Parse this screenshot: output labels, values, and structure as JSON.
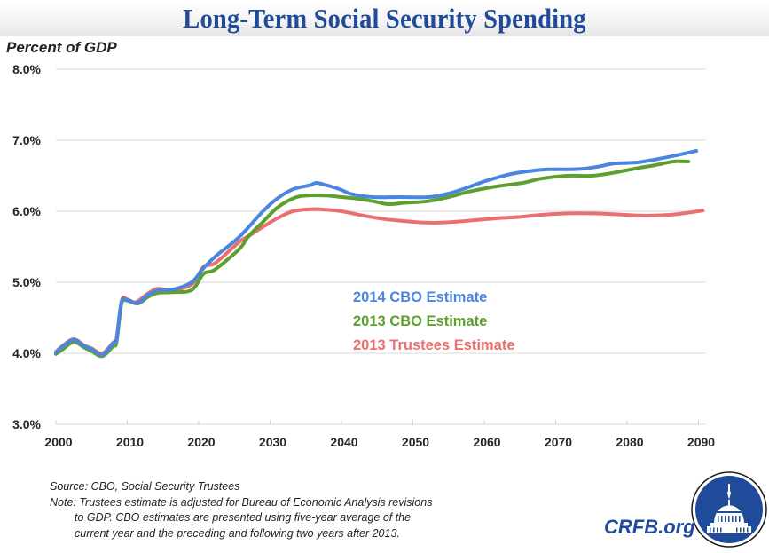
{
  "title": "Long-Term Social Security Spending",
  "colors": {
    "title": "#1f4b9a",
    "series_2014_cbo": "#4a86e0",
    "series_2013_cbo": "#5ea030",
    "series_2013_trustees": "#ec6f6f",
    "grid": "#d9d9d9",
    "brand": "#1f4b9a"
  },
  "chart_data": {
    "type": "line",
    "title": "Long-Term Social Security Spending",
    "xlabel": "",
    "ylabel": "Percent of GDP",
    "xlim": [
      2000,
      2091
    ],
    "ylim": [
      3.0,
      8.0
    ],
    "x_ticks": [
      2000,
      2010,
      2020,
      2030,
      2040,
      2050,
      2060,
      2070,
      2080,
      2090
    ],
    "x_tick_labels": [
      "2000",
      "2010",
      "2020",
      "2030",
      "2040",
      "2050",
      "2060",
      "2070",
      "2080",
      "2090"
    ],
    "y_ticks": [
      3.0,
      4.0,
      5.0,
      6.0,
      7.0,
      8.0
    ],
    "y_tick_labels": [
      "3.0%",
      "4.0%",
      "5.0%",
      "6.0%",
      "7.0%",
      "8.0%"
    ],
    "grid": true,
    "legend_position": "center",
    "series": [
      {
        "name": "2014 CBO Estimate",
        "color": "#4a86e0",
        "points": [
          [
            2000,
            4.01
          ],
          [
            2001,
            4.1
          ],
          [
            2002.5,
            4.19
          ],
          [
            2004,
            4.1
          ],
          [
            2005,
            4.06
          ],
          [
            2006.5,
            3.98
          ],
          [
            2008,
            4.14
          ],
          [
            2008.5,
            4.2
          ],
          [
            2009.2,
            4.72
          ],
          [
            2010,
            4.75
          ],
          [
            2011.5,
            4.71
          ],
          [
            2013,
            4.83
          ],
          [
            2014.5,
            4.89
          ],
          [
            2016.5,
            4.9
          ],
          [
            2019,
            5.0
          ],
          [
            2020.7,
            5.2
          ],
          [
            2022.3,
            5.36
          ],
          [
            2025.7,
            5.64
          ],
          [
            2029,
            6.0
          ],
          [
            2031,
            6.18
          ],
          [
            2033.2,
            6.31
          ],
          [
            2035.7,
            6.37
          ],
          [
            2036.5,
            6.4
          ],
          [
            2038.5,
            6.35
          ],
          [
            2040,
            6.3
          ],
          [
            2041.5,
            6.24
          ],
          [
            2044.4,
            6.2
          ],
          [
            2048,
            6.2
          ],
          [
            2052.2,
            6.2
          ],
          [
            2055,
            6.25
          ],
          [
            2057.5,
            6.33
          ],
          [
            2060,
            6.42
          ],
          [
            2062,
            6.48
          ],
          [
            2064,
            6.53
          ],
          [
            2066.7,
            6.57
          ],
          [
            2069,
            6.59
          ],
          [
            2071.7,
            6.59
          ],
          [
            2074,
            6.6
          ],
          [
            2076,
            6.63
          ],
          [
            2078,
            6.67
          ],
          [
            2080,
            6.68
          ],
          [
            2081.6,
            6.69
          ],
          [
            2084,
            6.73
          ],
          [
            2087,
            6.79
          ],
          [
            2089.7,
            6.85
          ]
        ]
      },
      {
        "name": "2013 CBO Estimate",
        "color": "#5ea030",
        "points": [
          [
            2000,
            3.99
          ],
          [
            2001,
            4.06
          ],
          [
            2002.5,
            4.16
          ],
          [
            2004,
            4.08
          ],
          [
            2005,
            4.03
          ],
          [
            2006.5,
            3.96
          ],
          [
            2008,
            4.1
          ],
          [
            2008.5,
            4.16
          ],
          [
            2009.2,
            4.7
          ],
          [
            2010,
            4.74
          ],
          [
            2011.5,
            4.7
          ],
          [
            2013,
            4.8
          ],
          [
            2014.3,
            4.85
          ],
          [
            2016.2,
            4.86
          ],
          [
            2019,
            4.89
          ],
          [
            2020.7,
            5.12
          ],
          [
            2022.3,
            5.18
          ],
          [
            2025.7,
            5.47
          ],
          [
            2027,
            5.65
          ],
          [
            2029,
            5.85
          ],
          [
            2031,
            6.05
          ],
          [
            2033.2,
            6.18
          ],
          [
            2035,
            6.22
          ],
          [
            2038,
            6.22
          ],
          [
            2040,
            6.2
          ],
          [
            2042,
            6.18
          ],
          [
            2044.5,
            6.14
          ],
          [
            2046.5,
            6.1
          ],
          [
            2049,
            6.12
          ],
          [
            2052,
            6.14
          ],
          [
            2055,
            6.2
          ],
          [
            2058,
            6.28
          ],
          [
            2061.7,
            6.35
          ],
          [
            2065.4,
            6.4
          ],
          [
            2068,
            6.46
          ],
          [
            2071.7,
            6.5
          ],
          [
            2075,
            6.5
          ],
          [
            2078,
            6.54
          ],
          [
            2081.6,
            6.61
          ],
          [
            2084,
            6.65
          ],
          [
            2086.5,
            6.7
          ],
          [
            2088.6,
            6.7
          ]
        ]
      },
      {
        "name": "2013 Trustees Estimate",
        "color": "#ec6f6f",
        "points": [
          [
            2000,
            4.02
          ],
          [
            2001,
            4.11
          ],
          [
            2002.5,
            4.2
          ],
          [
            2004,
            4.11
          ],
          [
            2005,
            4.07
          ],
          [
            2006.5,
            4.0
          ],
          [
            2008,
            4.15
          ],
          [
            2008.5,
            4.21
          ],
          [
            2009.2,
            4.74
          ],
          [
            2010,
            4.76
          ],
          [
            2011.2,
            4.72
          ],
          [
            2013,
            4.85
          ],
          [
            2014.3,
            4.91
          ],
          [
            2016.2,
            4.89
          ],
          [
            2019,
            4.97
          ],
          [
            2020.7,
            5.22
          ],
          [
            2022.3,
            5.27
          ],
          [
            2025.7,
            5.57
          ],
          [
            2027,
            5.65
          ],
          [
            2029,
            5.78
          ],
          [
            2031,
            5.9
          ],
          [
            2033.2,
            6.0
          ],
          [
            2036,
            6.03
          ],
          [
            2038,
            6.02
          ],
          [
            2040,
            6.0
          ],
          [
            2043,
            5.94
          ],
          [
            2046,
            5.89
          ],
          [
            2049,
            5.86
          ],
          [
            2051.8,
            5.84
          ],
          [
            2054,
            5.84
          ],
          [
            2057,
            5.86
          ],
          [
            2061.7,
            5.9
          ],
          [
            2065,
            5.92
          ],
          [
            2068,
            5.95
          ],
          [
            2071.7,
            5.97
          ],
          [
            2075,
            5.97
          ],
          [
            2078,
            5.96
          ],
          [
            2081.6,
            5.94
          ],
          [
            2084,
            5.94
          ],
          [
            2087,
            5.96
          ],
          [
            2090.6,
            6.01
          ]
        ]
      }
    ],
    "legend": [
      "2014 CBO Estimate",
      "2013 CBO Estimate",
      "2013 Trustees Estimate"
    ]
  },
  "footer": {
    "source": "Source: CBO, Social Security Trustees",
    "note_first": "Note: Trustees estimate is adjusted for Bureau of Economic Analysis revisions",
    "note_rest_1": "to GDP. CBO estimates are presented using five-year average of the",
    "note_rest_2": "current year and the preceding and following two years after 2013."
  },
  "brand": {
    "text": "CRFB.org",
    "logo_icon": "capitol-dome-icon"
  }
}
